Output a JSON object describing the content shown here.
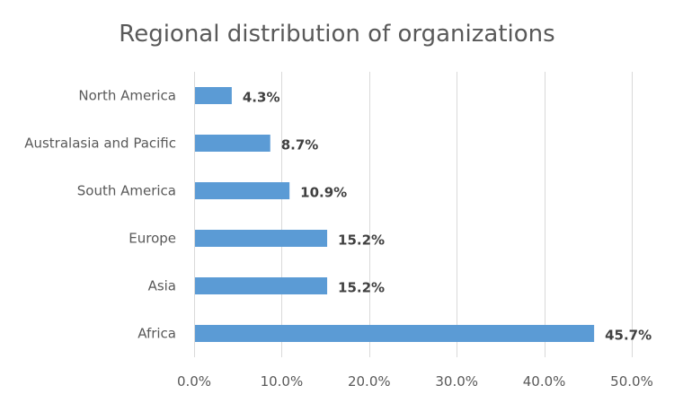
{
  "chart_data": {
    "type": "bar",
    "orientation": "horizontal",
    "title": "Regional distribution of organizations",
    "categories": [
      "North America",
      "Australasia and Pacific",
      "South America",
      "Europe",
      "Asia",
      "Africa"
    ],
    "values": [
      4.3,
      8.7,
      10.9,
      15.2,
      15.2,
      45.7
    ],
    "data_labels": [
      "4.3%",
      "8.7%",
      "10.9%",
      "15.2%",
      "15.2%",
      "45.7%"
    ],
    "xlim": [
      0,
      50
    ],
    "xticks": [
      0,
      10,
      20,
      30,
      40,
      50
    ],
    "xtick_labels": [
      "0.0%",
      "10.0%",
      "20.0%",
      "30.0%",
      "40.0%",
      "50.0%"
    ],
    "xlabel": "",
    "ylabel": "",
    "grid": "vertical",
    "legend": "none",
    "bar_color": "#5b9bd5"
  }
}
